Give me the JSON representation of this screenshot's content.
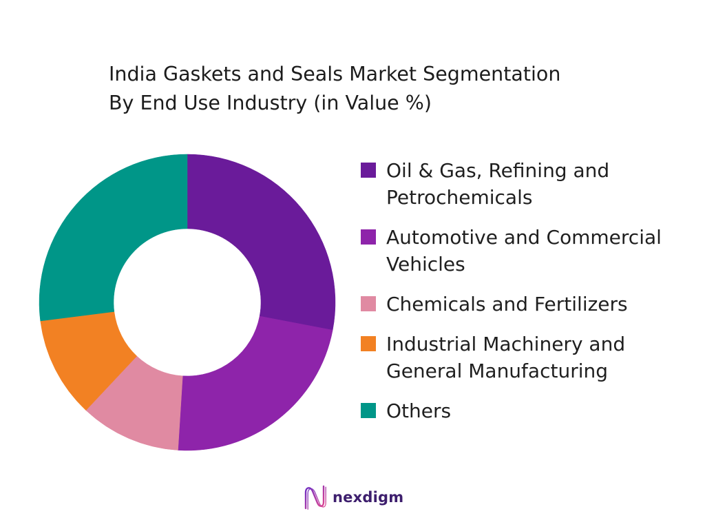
{
  "chart_data": {
    "type": "pie",
    "donut": true,
    "title": "India Gaskets and Seals Market Segmentation By End Use Industry (in Value %)",
    "categories": [
      "Oil & Gas, Refining and Petrochemicals",
      "Automotive and Commercial Vehicles",
      "Chemicals and Fertilizers",
      "Industrial Machinery and General Manufacturing",
      "Others"
    ],
    "values": [
      28,
      23,
      11,
      11,
      27
    ],
    "colors": [
      "#6A1B9A",
      "#8E24AA",
      "#E08AA2",
      "#F28123",
      "#009688"
    ],
    "legend_position": "right"
  },
  "logo": {
    "text": "nexdigm",
    "icon": "nexdigm-wave-icon",
    "icon_colors": [
      "#6B2CC4",
      "#E2468F"
    ],
    "text_color": "#3D1E6D"
  }
}
